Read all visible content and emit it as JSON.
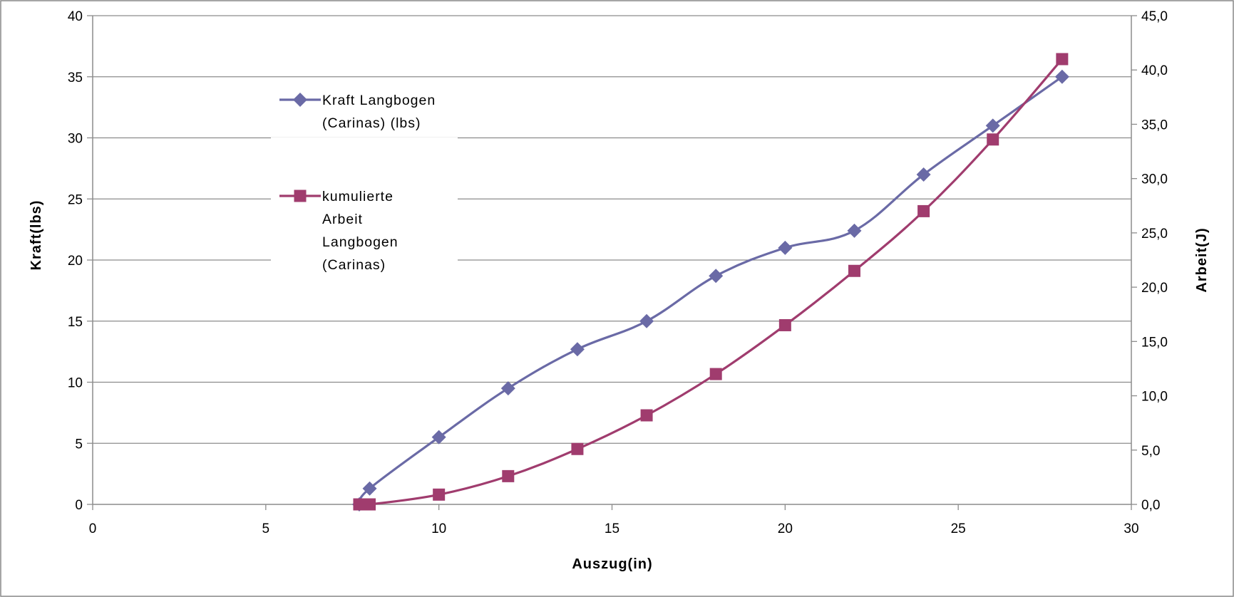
{
  "chart_data": {
    "type": "line",
    "xlabel": "Auszug(in)",
    "ylabel": "Kraft(lbs)",
    "y2label": "Arbeit(J)",
    "xlim": [
      0,
      30
    ],
    "ylim": [
      0,
      40
    ],
    "y2lim": [
      0,
      45
    ],
    "xticks": [
      "0",
      "5",
      "10",
      "15",
      "20",
      "25",
      "30"
    ],
    "yticks": [
      "0",
      "5",
      "10",
      "15",
      "20",
      "25",
      "30",
      "35",
      "40"
    ],
    "y2ticks": [
      "0,0",
      "5,0",
      "10,0",
      "15,0",
      "20,0",
      "25,0",
      "30,0",
      "35,0",
      "40,0",
      "45,0"
    ],
    "grid": "horizontal",
    "legend_position": "upper-left",
    "series": [
      {
        "name_lines": [
          "Kraft Langbogen",
          "(Carinas) (lbs)"
        ],
        "axis": "left",
        "marker": "diamond",
        "color": "#6a6aa6",
        "points": [
          [
            7.7,
            0
          ],
          [
            8,
            1.3
          ],
          [
            10,
            5.5
          ],
          [
            12,
            9.5
          ],
          [
            14,
            12.7
          ],
          [
            16,
            15
          ],
          [
            18,
            18.7
          ],
          [
            20,
            21
          ],
          [
            22,
            22.4
          ],
          [
            24,
            27
          ],
          [
            26,
            31
          ],
          [
            28,
            35
          ]
        ]
      },
      {
        "name_lines": [
          "kumulierte",
          "Arbeit",
          "Langbogen",
          "(Carinas)"
        ],
        "axis": "right",
        "marker": "square",
        "color": "#a03c6e",
        "points": [
          [
            7.7,
            0
          ],
          [
            8,
            0
          ],
          [
            10,
            0.9
          ],
          [
            12,
            2.6
          ],
          [
            14,
            5.1
          ],
          [
            16,
            8.2
          ],
          [
            18,
            12.0
          ],
          [
            20,
            16.5
          ],
          [
            22,
            21.5
          ],
          [
            24,
            27.0
          ],
          [
            26,
            33.6
          ],
          [
            28,
            41.0
          ]
        ]
      }
    ]
  }
}
